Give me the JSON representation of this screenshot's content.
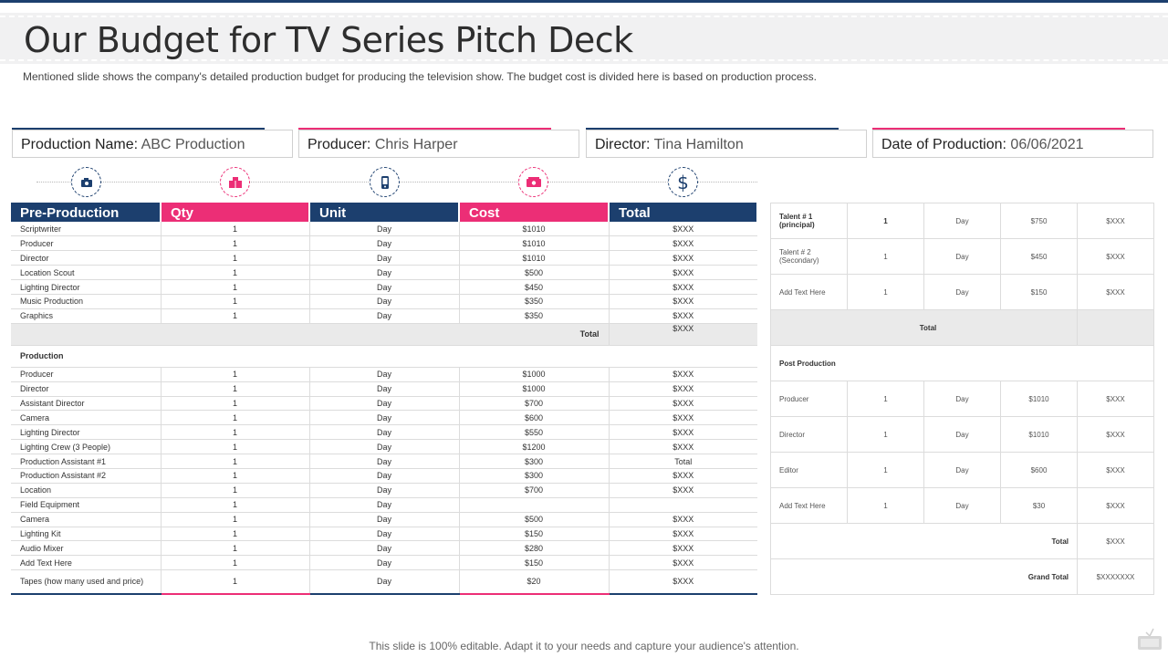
{
  "title": "Our Budget for TV Series Pitch Deck",
  "subtitle": "Mentioned slide shows the company's detailed production budget for producing the television show. The budget cost is divided here is based on production process.",
  "info": [
    {
      "label": "Production Name:",
      "value": "ABC Production",
      "accent": "#1c3f6e"
    },
    {
      "label": "Producer:",
      "value": "Chris Harper",
      "accent": "#ec2e76"
    },
    {
      "label": "Director:",
      "value": "Tina Hamilton",
      "accent": "#1c3f6e"
    },
    {
      "label": "Date of Production:",
      "value": "06/06/2021",
      "accent": "#ec2e76"
    }
  ],
  "icons": [
    "camera-icon",
    "film-reel-icon",
    "mobile-phone-icon",
    "cash-icon",
    "dollar-icon"
  ],
  "colors": {
    "navy": "#1c3f6e",
    "pink": "#ec2e76"
  },
  "main": {
    "headers": [
      "Pre-Production",
      "Qty",
      "Unit",
      "Cost",
      "Total"
    ],
    "preproduction": [
      [
        "Scriptwriter",
        "1",
        "Day",
        "$1010",
        "$XXX"
      ],
      [
        "Producer",
        "1",
        "Day",
        "$1010",
        "$XXX"
      ],
      [
        "Director",
        "1",
        "Day",
        "$1010",
        "$XXX"
      ],
      [
        "Location Scout",
        "1",
        "Day",
        "$500",
        "$XXX"
      ],
      [
        "Lighting Director",
        "1",
        "Day",
        "$450",
        "$XXX"
      ],
      [
        "Music Production",
        "1",
        "Day",
        "$350",
        "$XXX"
      ],
      [
        "Graphics",
        "1",
        "Day",
        "$350",
        "$XXX"
      ]
    ],
    "pre_total_label": "Total",
    "pre_total_value": "$XXX",
    "production_label": "Production",
    "production": [
      [
        "Producer",
        "1",
        "Day",
        "$1000",
        "$XXX"
      ],
      [
        "Director",
        "1",
        "Day",
        "$1000",
        "$XXX"
      ],
      [
        "Assistant Director",
        "1",
        "Day",
        "$700",
        "$XXX"
      ],
      [
        "Camera",
        "1",
        "Day",
        "$600",
        "$XXX"
      ],
      [
        "Lighting Director",
        "1",
        "Day",
        "$550",
        "$XXX"
      ],
      [
        "Lighting Crew (3 People)",
        "1",
        "Day",
        "$1200",
        "$XXX"
      ],
      [
        "Production Assistant #1",
        "1",
        "Day",
        "$300",
        "Total"
      ],
      [
        "Production Assistant #2",
        "1",
        "Day",
        "$300",
        "$XXX"
      ],
      [
        "Location",
        "1",
        "Day",
        "$700",
        "$XXX"
      ],
      [
        "Field Equipment",
        "1",
        "Day",
        "",
        ""
      ],
      [
        "Camera",
        "1",
        "Day",
        "$500",
        "$XXX"
      ],
      [
        "Lighting Kit",
        "1",
        "Day",
        "$150",
        "$XXX"
      ],
      [
        "Audio Mixer",
        "1",
        "Day",
        "$280",
        "$XXX"
      ],
      [
        "Add Text Here",
        "1",
        "Day",
        "$150",
        "$XXX"
      ]
    ],
    "last_row": [
      "Tapes (how many used and price)",
      "1",
      "Day",
      "$20",
      "$XXX"
    ]
  },
  "side": {
    "talent": [
      [
        "Talent # 1 (principal)",
        "1",
        "Day",
        "$750",
        "$XXX"
      ],
      [
        "Talent # 2 (Secondary)",
        "1",
        "Day",
        "$450",
        "$XXX"
      ],
      [
        "Add Text Here",
        "1",
        "Day",
        "$150",
        "$XXX"
      ]
    ],
    "talent_total_label": "Total",
    "post_label": "Post Production",
    "post": [
      [
        "Producer",
        "1",
        "Day",
        "$1010",
        "$XXX"
      ],
      [
        "Director",
        "1",
        "Day",
        "$1010",
        "$XXX"
      ],
      [
        "Editor",
        "1",
        "Day",
        "$600",
        "$XXX"
      ],
      [
        "Add Text Here",
        "1",
        "Day",
        "$30",
        "$XXX"
      ]
    ],
    "post_total_label": "Total",
    "post_total_value": "$XXX",
    "grand_total_label": "Grand Total",
    "grand_total_value": "$XXXXXXX"
  },
  "footer": "This slide is 100% editable. Adapt it to your needs and capture your audience's attention."
}
